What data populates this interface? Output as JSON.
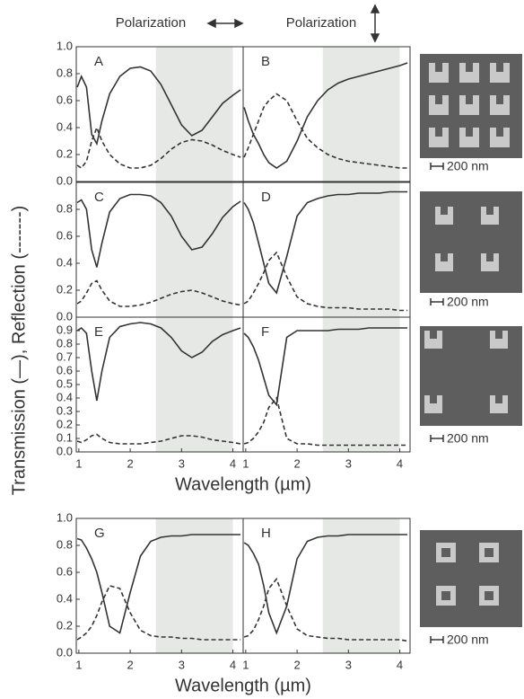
{
  "figure": {
    "ylabel": "Transmission (—), Reflection (-------)",
    "polarization": [
      "Polarization",
      "Polarization"
    ],
    "scale_bars": [
      "200 nm",
      "200 nm",
      "200 nm",
      "200 nm"
    ]
  },
  "chart_data": [
    {
      "type": "line",
      "title": "A",
      "xlim": [
        0.95,
        4.2
      ],
      "ylim": [
        0,
        1
      ],
      "shaded_range": [
        2.5,
        4.0
      ],
      "yticks": [
        {
          "value": 0,
          "label": "0.0"
        },
        {
          "value": 0.2,
          "label": "0.2"
        },
        {
          "value": 0.4,
          "label": "0.4"
        },
        {
          "value": 0.6,
          "label": "0.6"
        },
        {
          "value": 0.8,
          "label": "0.8"
        },
        {
          "value": 1,
          "label": "1.0"
        }
      ],
      "x": [
        0.97,
        1.05,
        1.15,
        1.25,
        1.35,
        1.45,
        1.6,
        1.8,
        2.0,
        2.2,
        2.4,
        2.6,
        2.8,
        3.0,
        3.2,
        3.4,
        3.6,
        3.8,
        4.0,
        4.15
      ],
      "series": [
        {
          "style": "solid",
          "color": "#333333",
          "values": [
            0.7,
            0.78,
            0.7,
            0.35,
            0.28,
            0.45,
            0.65,
            0.78,
            0.84,
            0.85,
            0.82,
            0.72,
            0.57,
            0.42,
            0.34,
            0.38,
            0.48,
            0.58,
            0.64,
            0.68
          ]
        },
        {
          "style": "dashed",
          "color": "#333333",
          "values": [
            0.12,
            0.1,
            0.15,
            0.3,
            0.4,
            0.3,
            0.2,
            0.13,
            0.1,
            0.1,
            0.12,
            0.17,
            0.24,
            0.29,
            0.31,
            0.3,
            0.27,
            0.23,
            0.2,
            0.18
          ]
        }
      ]
    },
    {
      "type": "line",
      "title": "B",
      "xlim": [
        0.95,
        4.2
      ],
      "ylim": [
        0,
        1
      ],
      "shaded_range": [
        2.5,
        4.0
      ],
      "x": [
        0.97,
        1.05,
        1.15,
        1.25,
        1.35,
        1.45,
        1.6,
        1.8,
        2.0,
        2.2,
        2.4,
        2.6,
        2.8,
        3.0,
        3.2,
        3.4,
        3.6,
        3.8,
        4.0,
        4.15
      ],
      "series": [
        {
          "style": "solid",
          "color": "#333333",
          "values": [
            0.55,
            0.45,
            0.35,
            0.28,
            0.2,
            0.14,
            0.1,
            0.15,
            0.3,
            0.48,
            0.6,
            0.68,
            0.73,
            0.76,
            0.78,
            0.8,
            0.82,
            0.84,
            0.86,
            0.88
          ]
        },
        {
          "style": "dashed",
          "color": "#333333",
          "values": [
            0.18,
            0.25,
            0.35,
            0.45,
            0.55,
            0.6,
            0.65,
            0.6,
            0.45,
            0.32,
            0.25,
            0.2,
            0.17,
            0.15,
            0.14,
            0.13,
            0.12,
            0.11,
            0.1,
            0.1
          ]
        }
      ]
    },
    {
      "type": "line",
      "title": "C",
      "xlim": [
        0.95,
        4.2
      ],
      "ylim": [
        0,
        1
      ],
      "shaded_range": [
        2.5,
        4.0
      ],
      "yticks": [
        {
          "value": 0,
          "label": "0.0"
        },
        {
          "value": 0.2,
          "label": "0.2"
        },
        {
          "value": 0.4,
          "label": "0.4"
        },
        {
          "value": 0.6,
          "label": "0.6"
        },
        {
          "value": 0.8,
          "label": "0.8"
        }
      ],
      "x": [
        0.97,
        1.05,
        1.15,
        1.25,
        1.35,
        1.45,
        1.6,
        1.8,
        2.0,
        2.2,
        2.4,
        2.6,
        2.8,
        3.0,
        3.2,
        3.4,
        3.6,
        3.8,
        4.0,
        4.15
      ],
      "series": [
        {
          "style": "solid",
          "color": "#333333",
          "values": [
            0.85,
            0.87,
            0.8,
            0.5,
            0.37,
            0.55,
            0.78,
            0.88,
            0.91,
            0.91,
            0.9,
            0.85,
            0.75,
            0.6,
            0.5,
            0.52,
            0.62,
            0.74,
            0.82,
            0.86
          ]
        },
        {
          "style": "dashed",
          "color": "#333333",
          "values": [
            0.1,
            0.12,
            0.18,
            0.25,
            0.27,
            0.2,
            0.12,
            0.08,
            0.08,
            0.09,
            0.11,
            0.14,
            0.17,
            0.19,
            0.2,
            0.18,
            0.15,
            0.12,
            0.1,
            0.09
          ]
        }
      ]
    },
    {
      "type": "line",
      "title": "D",
      "xlim": [
        0.95,
        4.2
      ],
      "ylim": [
        0,
        1
      ],
      "shaded_range": [
        2.5,
        4.0
      ],
      "x": [
        0.97,
        1.05,
        1.15,
        1.25,
        1.35,
        1.45,
        1.6,
        1.8,
        2.0,
        2.2,
        2.4,
        2.6,
        2.8,
        3.0,
        3.2,
        3.4,
        3.6,
        3.8,
        4.0,
        4.15
      ],
      "series": [
        {
          "style": "solid",
          "color": "#333333",
          "values": [
            0.85,
            0.8,
            0.7,
            0.55,
            0.4,
            0.25,
            0.18,
            0.45,
            0.75,
            0.85,
            0.88,
            0.9,
            0.91,
            0.91,
            0.92,
            0.92,
            0.92,
            0.93,
            0.93,
            0.93
          ]
        },
        {
          "style": "dashed",
          "color": "#333333",
          "values": [
            0.1,
            0.12,
            0.18,
            0.25,
            0.33,
            0.42,
            0.48,
            0.3,
            0.15,
            0.1,
            0.08,
            0.07,
            0.07,
            0.07,
            0.06,
            0.06,
            0.06,
            0.06,
            0.05,
            0.05
          ]
        }
      ]
    },
    {
      "type": "line",
      "title": "E",
      "xlim": [
        0.95,
        4.2
      ],
      "ylim": [
        0,
        1
      ],
      "shaded_range": [
        2.5,
        4.0
      ],
      "xlabel": "Wavelength (µm)",
      "yticks": [
        {
          "value": 0,
          "label": "0.0"
        },
        {
          "value": 0.1,
          "label": "0.1"
        },
        {
          "value": 0.2,
          "label": "0.2"
        },
        {
          "value": 0.3,
          "label": "0.3"
        },
        {
          "value": 0.4,
          "label": "0.4"
        },
        {
          "value": 0.5,
          "label": "0.5"
        },
        {
          "value": 0.6,
          "label": "0.6"
        },
        {
          "value": 0.7,
          "label": "0.7"
        },
        {
          "value": 0.8,
          "label": "0.8"
        },
        {
          "value": 0.9,
          "label": "0.9"
        }
      ],
      "xticks": [
        1,
        2,
        3,
        4
      ],
      "x": [
        0.97,
        1.05,
        1.15,
        1.25,
        1.35,
        1.45,
        1.6,
        1.8,
        2.0,
        2.2,
        2.4,
        2.6,
        2.8,
        3.0,
        3.2,
        3.4,
        3.6,
        3.8,
        4.0,
        4.15
      ],
      "series": [
        {
          "style": "solid",
          "color": "#333333",
          "values": [
            0.9,
            0.92,
            0.88,
            0.6,
            0.38,
            0.6,
            0.85,
            0.93,
            0.95,
            0.96,
            0.95,
            0.92,
            0.85,
            0.75,
            0.7,
            0.74,
            0.82,
            0.87,
            0.9,
            0.92
          ]
        },
        {
          "style": "dashed",
          "color": "#333333",
          "values": [
            0.08,
            0.07,
            0.09,
            0.12,
            0.13,
            0.1,
            0.07,
            0.06,
            0.06,
            0.06,
            0.07,
            0.08,
            0.1,
            0.12,
            0.12,
            0.11,
            0.09,
            0.08,
            0.07,
            0.06
          ]
        }
      ]
    },
    {
      "type": "line",
      "title": "F",
      "xlim": [
        0.95,
        4.2
      ],
      "ylim": [
        0,
        1
      ],
      "shaded_range": [
        2.5,
        4.0
      ],
      "xticks": [
        1,
        2,
        3,
        4
      ],
      "x": [
        0.97,
        1.05,
        1.15,
        1.25,
        1.35,
        1.45,
        1.6,
        1.8,
        2.0,
        2.2,
        2.4,
        2.6,
        2.8,
        3.0,
        3.2,
        3.4,
        3.6,
        3.8,
        4.0,
        4.15
      ],
      "series": [
        {
          "style": "solid",
          "color": "#333333",
          "values": [
            0.88,
            0.85,
            0.78,
            0.68,
            0.55,
            0.42,
            0.35,
            0.85,
            0.9,
            0.9,
            0.9,
            0.9,
            0.91,
            0.91,
            0.91,
            0.92,
            0.92,
            0.92,
            0.92,
            0.92
          ]
        },
        {
          "style": "dashed",
          "color": "#333333",
          "values": [
            0.06,
            0.07,
            0.1,
            0.15,
            0.22,
            0.33,
            0.4,
            0.1,
            0.06,
            0.06,
            0.05,
            0.05,
            0.05,
            0.05,
            0.05,
            0.05,
            0.05,
            0.05,
            0.05,
            0.05
          ]
        }
      ]
    },
    {
      "type": "line",
      "title": "G",
      "xlim": [
        0.95,
        4.2
      ],
      "ylim": [
        0,
        1
      ],
      "shaded_range": [
        2.5,
        4.0
      ],
      "xlabel": "Wavelength (µm)",
      "yticks": [
        {
          "value": 0,
          "label": "0.0"
        },
        {
          "value": 0.2,
          "label": "0.2"
        },
        {
          "value": 0.4,
          "label": "0.4"
        },
        {
          "value": 0.6,
          "label": "0.6"
        },
        {
          "value": 0.8,
          "label": "0.8"
        },
        {
          "value": 1,
          "label": "1.0"
        }
      ],
      "xticks": [
        1,
        2,
        3,
        4
      ],
      "x": [
        0.97,
        1.05,
        1.15,
        1.25,
        1.35,
        1.45,
        1.6,
        1.8,
        2.0,
        2.2,
        2.4,
        2.6,
        2.8,
        3.0,
        3.2,
        3.4,
        3.6,
        3.8,
        4.0,
        4.15
      ],
      "series": [
        {
          "style": "solid",
          "color": "#333333",
          "values": [
            0.85,
            0.84,
            0.78,
            0.7,
            0.6,
            0.45,
            0.2,
            0.15,
            0.45,
            0.72,
            0.83,
            0.86,
            0.87,
            0.87,
            0.88,
            0.88,
            0.88,
            0.88,
            0.88,
            0.88
          ]
        },
        {
          "style": "dashed",
          "color": "#333333",
          "values": [
            0.1,
            0.12,
            0.15,
            0.2,
            0.28,
            0.38,
            0.5,
            0.48,
            0.3,
            0.17,
            0.13,
            0.12,
            0.12,
            0.11,
            0.11,
            0.1,
            0.1,
            0.1,
            0.1,
            0.1
          ]
        }
      ]
    },
    {
      "type": "line",
      "title": "H",
      "xlim": [
        0.95,
        4.2
      ],
      "ylim": [
        0,
        1
      ],
      "shaded_range": [
        2.5,
        4.0
      ],
      "xticks": [
        1,
        2,
        3,
        4
      ],
      "x": [
        0.97,
        1.05,
        1.15,
        1.25,
        1.35,
        1.45,
        1.6,
        1.8,
        2.0,
        2.2,
        2.4,
        2.6,
        2.8,
        3.0,
        3.2,
        3.4,
        3.6,
        3.8,
        4.0,
        4.15
      ],
      "series": [
        {
          "style": "solid",
          "color": "#333333",
          "values": [
            0.82,
            0.8,
            0.74,
            0.66,
            0.5,
            0.3,
            0.15,
            0.35,
            0.7,
            0.83,
            0.86,
            0.87,
            0.87,
            0.88,
            0.88,
            0.88,
            0.88,
            0.88,
            0.88,
            0.88
          ]
        },
        {
          "style": "dashed",
          "color": "#333333",
          "values": [
            0.12,
            0.13,
            0.17,
            0.25,
            0.35,
            0.48,
            0.55,
            0.35,
            0.18,
            0.13,
            0.12,
            0.11,
            0.11,
            0.1,
            0.1,
            0.1,
            0.1,
            0.1,
            0.1,
            0.09
          ]
        }
      ]
    }
  ]
}
